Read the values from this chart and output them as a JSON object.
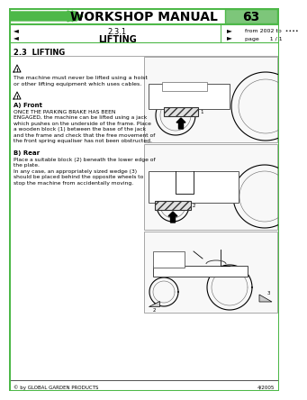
{
  "title": "WORKSHOP MANUAL",
  "page_num": "63",
  "section": "2.3.1",
  "section_title": "LIFTING",
  "from_text": "from 2002 to",
  "dots": "••••",
  "page_label": "page",
  "page_info": "1 / 1",
  "section_heading": "2.3  LIFTING",
  "warning_text1": "The machine must never be lifted using a hoist\nor other lifting equipment which uses cables.",
  "sub_a": "A) Front",
  "text_a": "ONCE THE PARKING BRAKE HAS BEEN\nENGAGED, the machine can be lifted using a jack\nwhich pushes on the underside of the frame. Place\na wooden block (1) between the base of the jack\nand the frame and check that the free movement of\nthe front spring equaliser has not been obstructed.",
  "sub_b": "B) Rear",
  "text_b": "Place a suitable block (2) beneath the lower edge of\nthe plate.\nIn any case, an appropriately sized wedge (3)\nshould be placed behind the opposite wheels to\nstop the machine from accidentally moving.",
  "footer_left": "© by GLOBAL GARDEN PRODUCTS",
  "footer_right": "4/2005",
  "green": "#4db848",
  "page_num_bg": "#7dc67a",
  "text_color": "#000000"
}
